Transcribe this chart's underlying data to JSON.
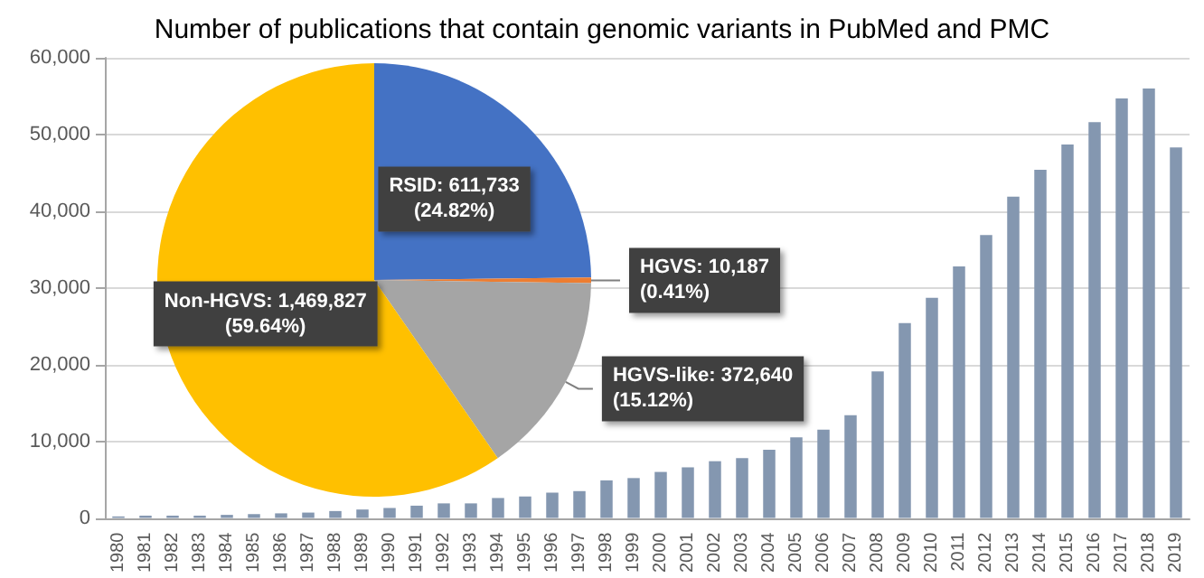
{
  "chart_data": [
    {
      "type": "bar",
      "title": "Number of publications that contain genomic variants in PubMed and PMC",
      "categories": [
        "1980",
        "1981",
        "1982",
        "1983",
        "1984",
        "1985",
        "1986",
        "1987",
        "1988",
        "1989",
        "1990",
        "1991",
        "1992",
        "1993",
        "1994",
        "1995",
        "1996",
        "1997",
        "1998",
        "1999",
        "2000",
        "2001",
        "2002",
        "2003",
        "2004",
        "2005",
        "2006",
        "2007",
        "2008",
        "2009",
        "2010",
        "2011",
        "2012",
        "2013",
        "2014",
        "2015",
        "2016",
        "2017",
        "2018",
        "2019"
      ],
      "values": [
        200,
        300,
        300,
        300,
        400,
        500,
        600,
        700,
        900,
        1100,
        1300,
        1600,
        1900,
        1900,
        2600,
        2800,
        3300,
        3500,
        4900,
        5200,
        6000,
        6600,
        7400,
        7800,
        8900,
        10500,
        11500,
        13400,
        19100,
        25400,
        28700,
        32800,
        36900,
        41900,
        45400,
        48700,
        51600,
        54700,
        56000,
        48300
      ],
      "color": "#8497b0",
      "ylim": [
        0,
        60000
      ],
      "yticks": [
        {
          "value": 0,
          "label": "0"
        },
        {
          "value": 10000,
          "label": "10,000"
        },
        {
          "value": 20000,
          "label": "20,000"
        },
        {
          "value": 30000,
          "label": "30,000"
        },
        {
          "value": 40000,
          "label": "40,000"
        },
        {
          "value": 50000,
          "label": "50,000"
        },
        {
          "value": 60000,
          "label": "60,000"
        }
      ],
      "grid": "y"
    },
    {
      "type": "pie",
      "categories": [
        "RSID",
        "HGVS",
        "HGVS-like",
        "Non-HGVS"
      ],
      "values": [
        611733,
        10187,
        372640,
        1469827
      ],
      "colors": [
        "#4472c4",
        "#ed7d31",
        "#a5a5a5",
        "#ffc000"
      ],
      "value_labels": [
        "611,733\n(24.82%)",
        "10,187\n(0.41%)",
        "372,640\n(15.12%)",
        "1,469,827\n(59.64%)"
      ]
    }
  ]
}
